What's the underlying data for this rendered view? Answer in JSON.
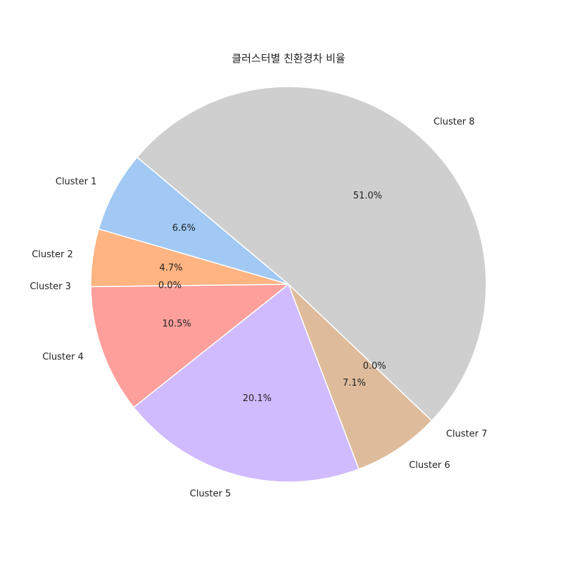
{
  "chart_data": {
    "type": "pie",
    "title": "클러스터별 친환경차 비율",
    "categories": [
      "Cluster 1",
      "Cluster 2",
      "Cluster 3",
      "Cluster 4",
      "Cluster 5",
      "Cluster 6",
      "Cluster 7",
      "Cluster 8"
    ],
    "values": [
      6.6,
      4.7,
      0.0,
      10.5,
      20.1,
      7.1,
      0.0,
      51.0
    ],
    "value_labels": [
      "6.6%",
      "4.7%",
      "0.0%",
      "10.5%",
      "20.1%",
      "7.1%",
      "0.0%",
      "51.0%"
    ],
    "colors": [
      "#a1c9f4",
      "#ffb482",
      "#8de5a1",
      "#ff9f9b",
      "#d0bbff",
      "#debb9b",
      "#fab0e4",
      "#cfcfcf"
    ],
    "start_angle_deg": 140,
    "direction": "counterclockwise",
    "legend": "none"
  }
}
